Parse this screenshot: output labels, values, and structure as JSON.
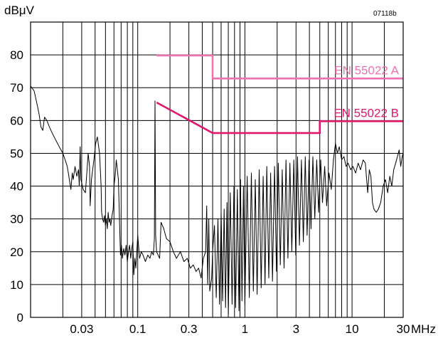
{
  "chart_data": {
    "type": "line",
    "title": "",
    "ylabel": "dBμV",
    "xlabel": "MHz",
    "figure_code": "07118b",
    "x_scale": "log",
    "xlim": [
      0.01,
      30
    ],
    "ylim": [
      0,
      90
    ],
    "grid": true,
    "y_ticks": [
      0,
      10,
      20,
      30,
      40,
      50,
      60,
      70,
      80
    ],
    "x_ticks": [
      {
        "value": 0.03,
        "label": "0.03"
      },
      {
        "value": 0.1,
        "label": "0.1"
      },
      {
        "value": 0.3,
        "label": "0.3"
      },
      {
        "value": 1,
        "label": "1"
      },
      {
        "value": 3,
        "label": "3"
      },
      {
        "value": 10,
        "label": "10"
      },
      {
        "value": 30,
        "label": "30"
      }
    ],
    "x_unit_label": "MHz",
    "limits": [
      {
        "name": "EN 55022 A",
        "color": "#f070b0",
        "points": [
          [
            0.15,
            79.8
          ],
          [
            0.5,
            79.8
          ],
          [
            0.5,
            72.8
          ],
          [
            30,
            72.8
          ]
        ]
      },
      {
        "name": "EN 55022 B",
        "color": "#e0186c",
        "points": [
          [
            0.15,
            65.5
          ],
          [
            0.5,
            56.2
          ],
          [
            5,
            56.2
          ],
          [
            5,
            59.8
          ],
          [
            30,
            59.8
          ]
        ]
      }
    ],
    "series": [
      {
        "color": "#000000",
        "points": [
          [
            0.01,
            70.5
          ],
          [
            0.0108,
            69
          ],
          [
            0.0115,
            65
          ],
          [
            0.012,
            62
          ],
          [
            0.0125,
            58
          ],
          [
            0.013,
            57
          ],
          [
            0.0135,
            61
          ],
          [
            0.0142,
            60
          ],
          [
            0.015,
            58
          ],
          [
            0.016,
            56
          ],
          [
            0.0172,
            54
          ],
          [
            0.0185,
            52
          ],
          [
            0.02,
            50
          ],
          [
            0.021,
            48
          ],
          [
            0.022,
            46
          ],
          [
            0.0225,
            44
          ],
          [
            0.023,
            42
          ],
          [
            0.0238,
            39
          ],
          [
            0.0245,
            44
          ],
          [
            0.025,
            42
          ],
          [
            0.026,
            46
          ],
          [
            0.027,
            43
          ],
          [
            0.028,
            45
          ],
          [
            0.0285,
            40
          ],
          [
            0.029,
            52
          ],
          [
            0.0295,
            42
          ],
          [
            0.03,
            41
          ],
          [
            0.031,
            39
          ],
          [
            0.0325,
            38
          ],
          [
            0.0335,
            44
          ],
          [
            0.0345,
            50
          ],
          [
            0.0355,
            46
          ],
          [
            0.036,
            34
          ],
          [
            0.037,
            42
          ],
          [
            0.039,
            48
          ],
          [
            0.0405,
            53
          ],
          [
            0.042,
            55
          ],
          [
            0.044,
            50
          ],
          [
            0.0455,
            40
          ],
          [
            0.046,
            32
          ],
          [
            0.047,
            30
          ],
          [
            0.048,
            29
          ],
          [
            0.049,
            31
          ],
          [
            0.05,
            28
          ],
          [
            0.051,
            30
          ],
          [
            0.052,
            27
          ],
          [
            0.053,
            32
          ],
          [
            0.054,
            29
          ],
          [
            0.055,
            30
          ],
          [
            0.056,
            28
          ],
          [
            0.0575,
            31
          ],
          [
            0.059,
            33
          ],
          [
            0.06,
            40
          ],
          [
            0.0615,
            43
          ],
          [
            0.063,
            48
          ],
          [
            0.064,
            46
          ],
          [
            0.065,
            44
          ],
          [
            0.066,
            42
          ],
          [
            0.067,
            34
          ],
          [
            0.068,
            26
          ],
          [
            0.069,
            19
          ],
          [
            0.0705,
            22
          ],
          [
            0.072,
            18
          ],
          [
            0.074,
            21
          ],
          [
            0.076,
            19
          ],
          [
            0.078,
            22
          ],
          [
            0.08,
            17
          ],
          [
            0.082,
            20
          ],
          [
            0.084,
            22
          ],
          [
            0.086,
            18
          ],
          [
            0.088,
            21
          ],
          [
            0.09,
            23
          ],
          [
            0.092,
            13
          ],
          [
            0.094,
            18
          ],
          [
            0.096,
            15
          ],
          [
            0.098,
            20
          ],
          [
            0.1,
            25
          ],
          [
            0.104,
            18
          ],
          [
            0.108,
            20
          ],
          [
            0.112,
            19
          ],
          [
            0.118,
            17
          ],
          [
            0.124,
            19
          ],
          [
            0.13,
            18
          ],
          [
            0.135,
            20
          ],
          [
            0.14,
            19
          ],
          [
            0.143,
            24
          ],
          [
            0.145,
            66
          ],
          [
            0.147,
            25
          ],
          [
            0.15,
            20
          ],
          [
            0.16,
            18
          ],
          [
            0.165,
            29
          ],
          [
            0.175,
            27
          ],
          [
            0.185,
            24
          ],
          [
            0.2,
            23
          ],
          [
            0.215,
            20
          ],
          [
            0.23,
            18
          ],
          [
            0.25,
            20
          ],
          [
            0.27,
            17
          ],
          [
            0.29,
            18
          ],
          [
            0.31,
            15
          ],
          [
            0.33,
            16
          ],
          [
            0.35,
            14
          ],
          [
            0.37,
            15
          ],
          [
            0.39,
            12
          ],
          [
            0.41,
            18
          ],
          [
            0.43,
            20
          ],
          [
            0.44,
            34
          ],
          [
            0.45,
            10
          ],
          [
            0.46,
            30
          ],
          [
            0.47,
            8
          ],
          [
            0.49,
            12
          ],
          [
            0.5,
            20
          ],
          [
            0.52,
            28
          ],
          [
            0.54,
            6
          ],
          [
            0.56,
            30
          ],
          [
            0.58,
            4
          ],
          [
            0.6,
            32
          ],
          [
            0.62,
            5
          ],
          [
            0.64,
            33
          ],
          [
            0.66,
            3
          ],
          [
            0.68,
            35
          ],
          [
            0.7,
            1
          ],
          [
            0.73,
            38
          ],
          [
            0.76,
            4
          ],
          [
            0.79,
            40
          ],
          [
            0.82,
            3
          ],
          [
            0.85,
            39
          ],
          [
            0.88,
            2
          ],
          [
            0.91,
            42
          ],
          [
            0.94,
            5
          ],
          [
            0.97,
            40
          ],
          [
            1.0,
            4
          ],
          [
            1.05,
            43
          ],
          [
            1.1,
            6
          ],
          [
            1.15,
            44
          ],
          [
            1.2,
            8
          ],
          [
            1.25,
            42
          ],
          [
            1.3,
            7
          ],
          [
            1.36,
            45
          ],
          [
            1.42,
            9
          ],
          [
            1.48,
            43
          ],
          [
            1.54,
            10
          ],
          [
            1.6,
            46
          ],
          [
            1.67,
            12
          ],
          [
            1.74,
            44
          ],
          [
            1.81,
            11
          ],
          [
            1.89,
            46
          ],
          [
            1.97,
            14
          ],
          [
            2.05,
            47
          ],
          [
            2.14,
            16
          ],
          [
            2.23,
            45
          ],
          [
            2.32,
            15
          ],
          [
            2.42,
            48
          ],
          [
            2.52,
            18
          ],
          [
            2.63,
            47
          ],
          [
            2.74,
            20
          ],
          [
            2.86,
            48
          ],
          [
            2.98,
            19
          ],
          [
            3.1,
            49
          ],
          [
            3.23,
            22
          ],
          [
            3.37,
            48
          ],
          [
            3.51,
            23
          ],
          [
            3.66,
            49
          ],
          [
            3.81,
            25
          ],
          [
            3.97,
            48
          ],
          [
            4.14,
            27
          ],
          [
            4.31,
            49
          ],
          [
            4.49,
            30
          ],
          [
            4.68,
            48
          ],
          [
            4.88,
            32
          ],
          [
            5.1,
            48
          ],
          [
            5.3,
            35
          ],
          [
            5.55,
            46
          ],
          [
            5.8,
            34
          ],
          [
            6.1,
            44
          ],
          [
            6.4,
            39
          ],
          [
            6.7,
            48
          ],
          [
            7.0,
            53
          ],
          [
            7.3,
            50
          ],
          [
            7.6,
            52
          ],
          [
            8.0,
            48
          ],
          [
            8.4,
            49
          ],
          [
            8.8,
            46
          ],
          [
            9.2,
            47
          ],
          [
            9.7,
            45
          ],
          [
            10.2,
            46
          ],
          [
            10.8,
            44
          ],
          [
            11.4,
            47
          ],
          [
            12.0,
            45
          ],
          [
            12.7,
            48
          ],
          [
            13.3,
            47
          ],
          [
            14.0,
            38
          ],
          [
            14.5,
            45
          ],
          [
            15.0,
            43
          ],
          [
            15.5,
            35
          ],
          [
            16.0,
            33
          ],
          [
            16.8,
            32
          ],
          [
            17.6,
            33
          ],
          [
            18.5,
            35
          ],
          [
            19.5,
            40
          ],
          [
            20.5,
            42
          ],
          [
            21.5,
            38
          ],
          [
            22.5,
            43
          ],
          [
            23.5,
            40
          ],
          [
            24.5,
            45
          ],
          [
            25.5,
            47
          ],
          [
            26.5,
            49
          ],
          [
            27.5,
            51
          ],
          [
            28.5,
            46
          ],
          [
            29.3,
            49
          ],
          [
            30,
            50
          ]
        ]
      }
    ]
  }
}
